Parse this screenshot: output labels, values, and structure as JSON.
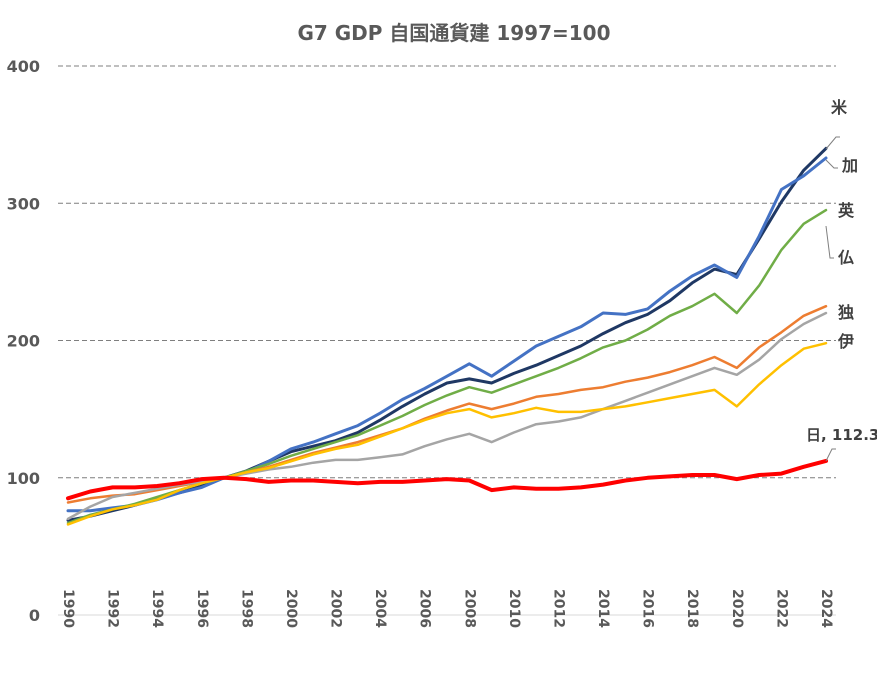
{
  "chart_data": {
    "type": "line",
    "title": "G7 GDP 自国通貨建 1997=100",
    "xlabel": "",
    "ylabel": "",
    "ylim": [
      0,
      400
    ],
    "yticks": [
      0,
      100,
      200,
      300,
      400
    ],
    "gridlines": [
      100,
      200,
      300,
      400
    ],
    "xlim": [
      1990,
      2024
    ],
    "xticks": [
      1990,
      1992,
      1994,
      1996,
      1998,
      2000,
      2002,
      2004,
      2006,
      2008,
      2010,
      2012,
      2014,
      2016,
      2018,
      2020,
      2022,
      2024
    ],
    "legend": "inline labels at right end",
    "grid": true,
    "x": [
      1990,
      1991,
      1992,
      1993,
      1994,
      1995,
      1996,
      1997,
      1998,
      1999,
      2000,
      2001,
      2002,
      2003,
      2004,
      2005,
      2006,
      2007,
      2008,
      2009,
      2010,
      2011,
      2012,
      2013,
      2014,
      2015,
      2016,
      2017,
      2018,
      2019,
      2020,
      2021,
      2022,
      2023,
      2024
    ],
    "series": [
      {
        "name": "米",
        "color": "#1f3864",
        "width": 3,
        "values": [
          69,
          72,
          76,
          80,
          85,
          89,
          94,
          100,
          105,
          112,
          119,
          123,
          127,
          133,
          142,
          152,
          161,
          169,
          172,
          169,
          176,
          182,
          189,
          196,
          205,
          213,
          219,
          229,
          242,
          252,
          248,
          274,
          301,
          324,
          340
        ]
      },
      {
        "name": "加",
        "color": "#4472c4",
        "width": 3,
        "values": [
          76,
          76,
          78,
          80,
          84,
          89,
          93,
          100,
          104,
          112,
          121,
          126,
          132,
          138,
          147,
          157,
          165,
          174,
          183,
          174,
          185,
          196,
          203,
          210,
          220,
          219,
          223,
          236,
          247,
          255,
          246,
          276,
          310,
          320,
          333
        ]
      },
      {
        "name": "英",
        "color": "#70ad47",
        "width": 2.5,
        "values": [
          67,
          73,
          77,
          81,
          86,
          91,
          96,
          100,
          105,
          110,
          116,
          121,
          126,
          131,
          138,
          145,
          153,
          160,
          166,
          162,
          168,
          174,
          180,
          187,
          195,
          200,
          208,
          218,
          225,
          234,
          220,
          240,
          266,
          285,
          295
        ]
      },
      {
        "name": "仏",
        "color": "#ed7d31",
        "width": 2.5,
        "values": [
          82,
          85,
          87,
          88,
          91,
          94,
          97,
          100,
          104,
          108,
          113,
          118,
          122,
          126,
          131,
          136,
          143,
          149,
          154,
          150,
          154,
          159,
          161,
          164,
          166,
          170,
          173,
          177,
          182,
          188,
          180,
          195,
          206,
          218,
          225
        ]
      },
      {
        "name": "独",
        "color": "#a5a5a5",
        "width": 2.5,
        "values": [
          70,
          79,
          86,
          89,
          92,
          95,
          97,
          100,
          103,
          106,
          108,
          111,
          113,
          113,
          115,
          117,
          123,
          128,
          132,
          126,
          133,
          139,
          141,
          144,
          150,
          156,
          162,
          168,
          174,
          180,
          175,
          186,
          201,
          212,
          220
        ]
      },
      {
        "name": "伊",
        "color": "#ffc000",
        "width": 2.5,
        "values": [
          66,
          72,
          77,
          80,
          84,
          91,
          96,
          100,
          104,
          107,
          112,
          117,
          121,
          124,
          130,
          136,
          142,
          147,
          150,
          144,
          147,
          151,
          148,
          148,
          150,
          152,
          155,
          158,
          161,
          164,
          152,
          168,
          182,
          194,
          198
        ]
      },
      {
        "name": "日",
        "color": "#ff0000",
        "width": 4,
        "values": [
          85,
          90,
          93,
          93,
          94,
          96,
          99,
          100,
          99,
          97,
          98,
          98,
          97,
          96,
          97,
          97,
          98,
          99,
          98,
          91,
          93,
          92,
          92,
          93,
          95,
          98,
          100,
          101,
          102,
          102,
          99,
          102,
          103,
          108,
          112.3
        ]
      }
    ],
    "labels": {
      "us": "米",
      "ca": "加",
      "uk": "英",
      "fr": "仏",
      "de": "独",
      "it": "伊",
      "jp": "日, 112.3"
    }
  }
}
